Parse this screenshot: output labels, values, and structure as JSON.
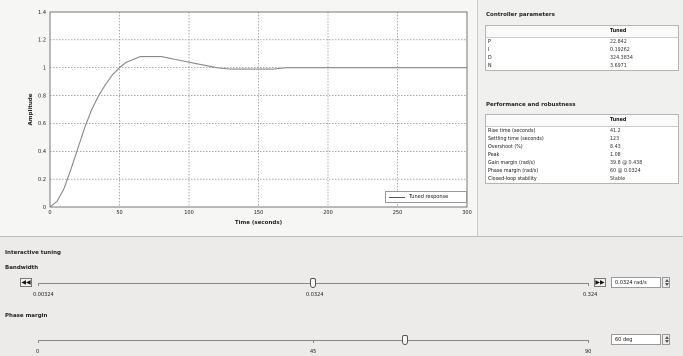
{
  "plot": {
    "xlabel": "Time (seconds)",
    "ylabel": "Amplitude",
    "legend_label": "Tuned response"
  },
  "chart_data": {
    "type": "line",
    "title": "",
    "xlabel": "Time (seconds)",
    "ylabel": "Amplitude",
    "xlim": [
      0,
      300
    ],
    "ylim": [
      0,
      1.4
    ],
    "x_ticks": [
      "0",
      "50",
      "100",
      "150",
      "200",
      "250",
      "300"
    ],
    "y_ticks": [
      "0",
      "0.2",
      "0.4",
      "0.6",
      "0.8",
      "1",
      "1.2",
      "1.4"
    ],
    "grid": true,
    "legend": "bottom-right",
    "series": [
      {
        "name": "Tuned response",
        "x": [
          0,
          5,
          10,
          15,
          20,
          25,
          30,
          35,
          40,
          45,
          50,
          55,
          60,
          65,
          70,
          75,
          80,
          85,
          90,
          95,
          100,
          105,
          110,
          115,
          120,
          130,
          140,
          150,
          160,
          170,
          180,
          190,
          200,
          220,
          240,
          260,
          280,
          300
        ],
        "y": [
          0,
          0.04,
          0.13,
          0.27,
          0.42,
          0.57,
          0.7,
          0.8,
          0.88,
          0.95,
          1.0,
          1.04,
          1.06,
          1.08,
          1.08,
          1.08,
          1.08,
          1.07,
          1.06,
          1.05,
          1.04,
          1.03,
          1.02,
          1.01,
          1.0,
          0.99,
          0.99,
          0.99,
          0.99,
          1.0,
          1.0,
          1.0,
          1.0,
          1.0,
          1.0,
          1.0,
          1.0,
          1.0
        ]
      }
    ]
  },
  "controller": {
    "title": "Controller parameters",
    "col": "Tuned",
    "rows": [
      {
        "label": "P",
        "value": "22.842"
      },
      {
        "label": "I",
        "value": "0.19262"
      },
      {
        "label": "D",
        "value": "324.3834"
      },
      {
        "label": "N",
        "value": "3.6971"
      }
    ]
  },
  "performance": {
    "title": "Performance and robustness",
    "col": "Tuned",
    "rows": [
      {
        "label": "Rise time (seconds)",
        "value": "41.2"
      },
      {
        "label": "Settling time (seconds)",
        "value": "123"
      },
      {
        "label": "Overshoot (%)",
        "value": "8.43"
      },
      {
        "label": "Peak",
        "value": "1.08"
      },
      {
        "label": "Gain margin (rad/s)",
        "value": "39.8 @ 0.438"
      },
      {
        "label": "Phase margin (rad/s)",
        "value": "60 @ 0.0324"
      },
      {
        "label": "Closed-loop stability",
        "value": "Stable"
      }
    ]
  },
  "tuning": {
    "title": "Interactive tuning",
    "bandwidth": {
      "label": "Bandwidth",
      "min_label": "0.00324",
      "mid_label": "0.0324",
      "max_label": "0.324",
      "value_text": "0.0324 rad/s",
      "position": 0.5
    },
    "phase_margin": {
      "label": "Phase margin",
      "min_label": "0",
      "mid_label": "45",
      "max_label": "90",
      "value_text": "60 deg",
      "position": 0.667
    }
  }
}
